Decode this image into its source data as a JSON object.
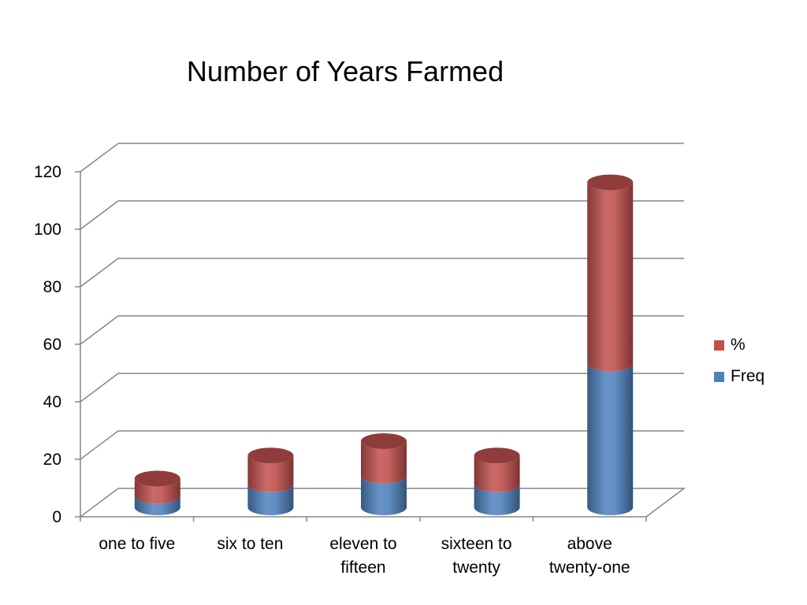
{
  "chart_data": {
    "type": "bar",
    "stacked": true,
    "three_d": true,
    "title": "Number of Years Farmed",
    "categories": [
      [
        "one to five"
      ],
      [
        "six to ten"
      ],
      [
        "eleven to",
        "fifteen"
      ],
      [
        "sixteen to",
        "twenty"
      ],
      [
        "above",
        "twenty-one"
      ]
    ],
    "series": [
      {
        "name": "Freq",
        "values": [
          4,
          8,
          11,
          8,
          50
        ],
        "color": "#4F81BD"
      },
      {
        "name": "%",
        "values": [
          6,
          10,
          12,
          10,
          63
        ],
        "color": "#C0504D"
      }
    ],
    "ylim": [
      0,
      120
    ],
    "yticks": [
      0,
      20,
      40,
      60,
      80,
      100,
      120
    ],
    "grid": true,
    "legend_position": "right",
    "legend_order": [
      "%",
      "Freq"
    ]
  }
}
